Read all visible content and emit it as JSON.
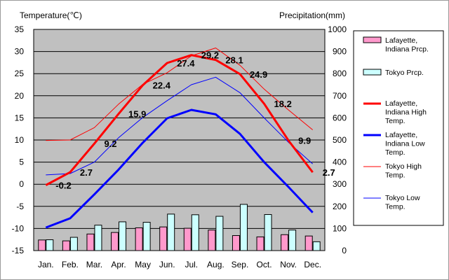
{
  "chart_data": {
    "type": "bar+line",
    "categories": [
      "Jan.",
      "Feb.",
      "Mar.",
      "Apr.",
      "May",
      "Jun.",
      "Jul.",
      "Aug.",
      "Sep.",
      "Oct.",
      "Nov.",
      "Dec."
    ],
    "left_axis": {
      "label": "Temperature(℃)",
      "range": [
        -15,
        35
      ],
      "ticks": [
        35,
        30,
        25,
        20,
        15,
        10,
        5,
        0,
        -5,
        -10,
        -15
      ]
    },
    "right_axis": {
      "label": "Precipitation(mm)",
      "range": [
        0,
        1000
      ],
      "ticks": [
        1000,
        900,
        800,
        700,
        600,
        500,
        400,
        300,
        200,
        100,
        0
      ]
    },
    "bar_series": [
      {
        "name": "Lafayette, Indiana Prcp.",
        "legend_lines": [
          "Lafayette,",
          "Indiana Prcp."
        ],
        "color": "#ff99cc",
        "values": [
          48,
          44,
          75,
          82,
          103,
          107,
          101,
          93,
          68,
          62,
          72,
          66
        ]
      },
      {
        "name": "Tokyo Prcp.",
        "legend_lines": [
          "Tokyo Prcp."
        ],
        "color": "#ccffff",
        "values": [
          49,
          60,
          115,
          130,
          128,
          165,
          162,
          155,
          209,
          163,
          93,
          40
        ]
      }
    ],
    "line_series": [
      {
        "name": "Lafayette, Indiana High Temp.",
        "legend_lines": [
          "Lafayette,",
          "Indiana High",
          "Temp."
        ],
        "color": "#ff0000",
        "width": 3,
        "values": [
          -0.2,
          2.7,
          9.2,
          15.9,
          22.4,
          27.4,
          29.2,
          28.1,
          24.9,
          18.2,
          9.9,
          2.7
        ],
        "labels": [
          "-0.2",
          "2.7",
          "9.2",
          "15.9",
          "22.4",
          "27.4",
          "29.2",
          "28.1",
          "24.9",
          "18.2",
          "9.9",
          "2.7"
        ]
      },
      {
        "name": "Lafayette, Indiana Low Temp.",
        "legend_lines": [
          "Lafayette,",
          "Indiana Low",
          "Temp."
        ],
        "color": "#0000ff",
        "width": 3,
        "values": [
          -9.8,
          -7.7,
          -2.3,
          3.3,
          9.4,
          14.9,
          16.8,
          15.8,
          11.4,
          5.0,
          -0.6,
          -6.4
        ]
      },
      {
        "name": "Tokyo High Temp.",
        "legend_lines": [
          "Tokyo High",
          "Temp."
        ],
        "color": "#ff0000",
        "width": 1,
        "values": [
          9.9,
          10.0,
          12.8,
          18.1,
          22.6,
          25.2,
          29.0,
          30.8,
          26.9,
          21.5,
          16.8,
          12.3
        ]
      },
      {
        "name": "Tokyo Low Temp.",
        "legend_lines": [
          "Tokyo Low",
          "Temp."
        ],
        "color": "#0000ff",
        "width": 1,
        "values": [
          2.1,
          2.4,
          5.0,
          10.5,
          15.1,
          18.9,
          22.5,
          24.2,
          20.7,
          15.0,
          9.5,
          4.6
        ]
      }
    ],
    "grid": true,
    "legend_position": "right"
  }
}
